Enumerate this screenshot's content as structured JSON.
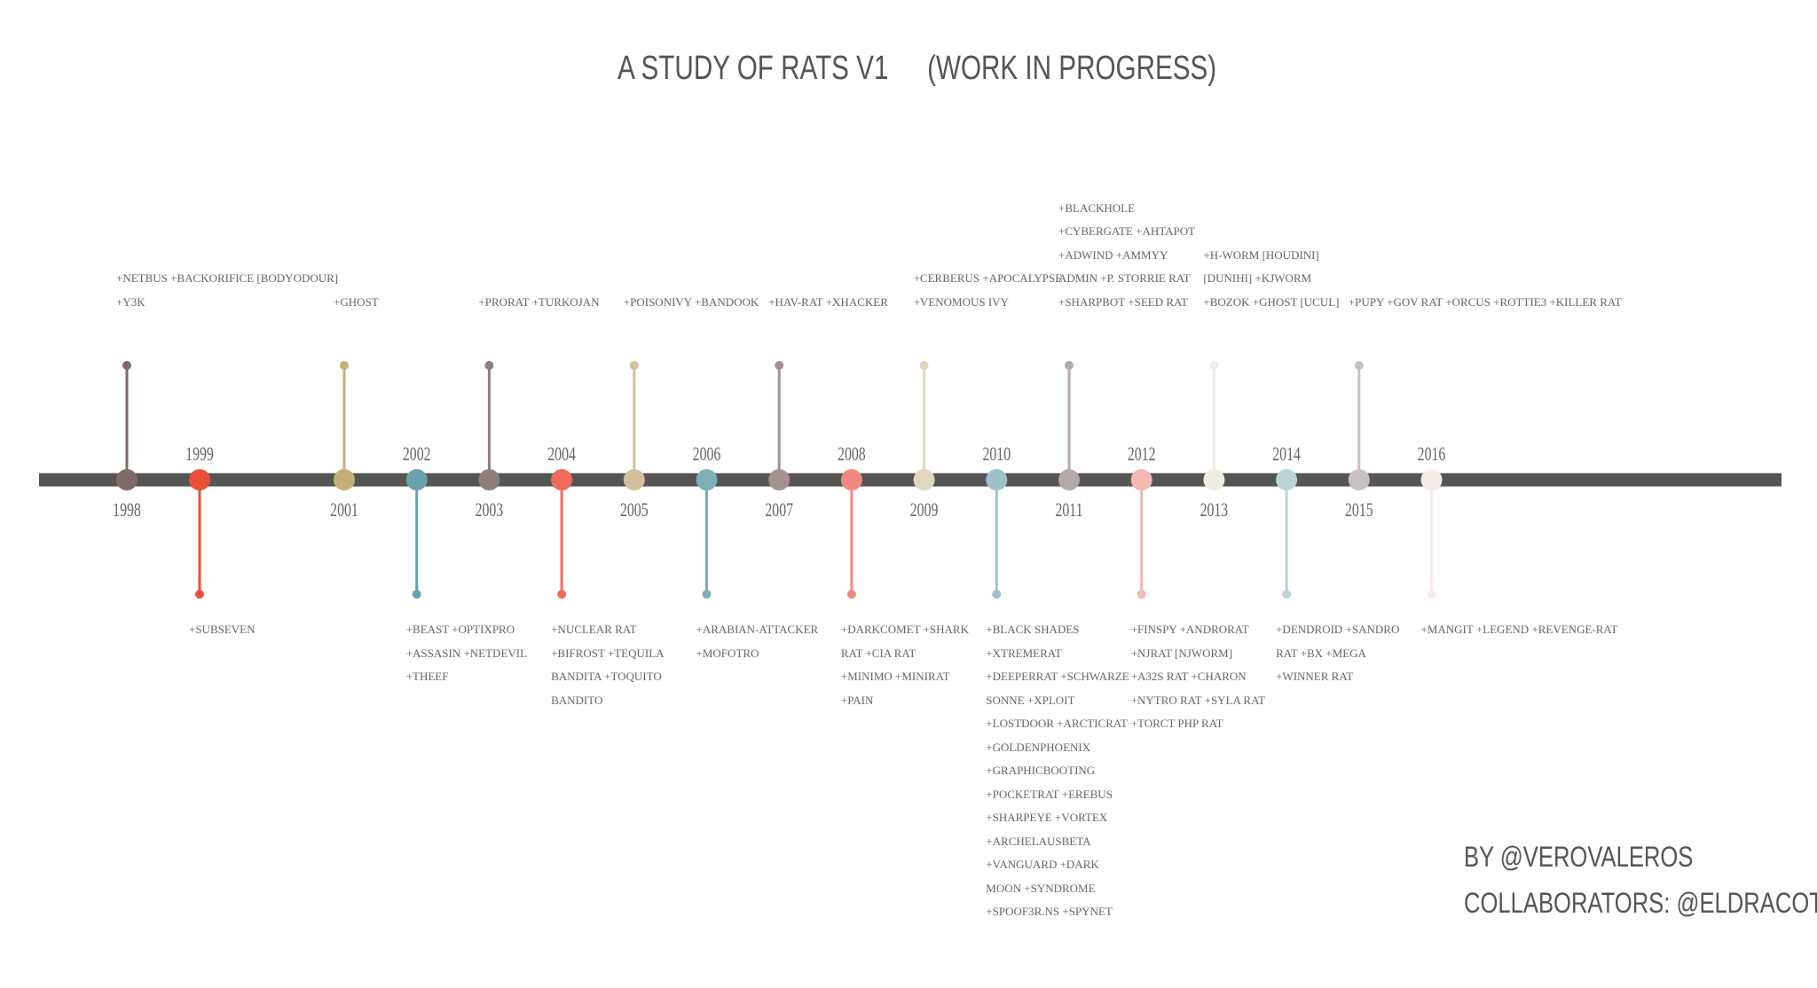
{
  "title": {
    "main": "A STUDY OF RATS V1",
    "status": "(WORK IN PROGRESS)"
  },
  "credits": {
    "author": "BY @VEROVALEROS",
    "collaborators": "COLLABORATORS: @ELDRACOTE"
  },
  "colors": {
    "axis": "#555555",
    "c1998": "#7d6c69",
    "c1999": "#e8503a",
    "c2001": "#c6ae79",
    "c2002": "#6aa3ab",
    "c2003": "#8f7e79",
    "c2004": "#ee6b5c",
    "c2005": "#d3c09f",
    "c2006": "#7eaeb6",
    "c2007": "#a3928f",
    "c2008": "#f08a80",
    "c2009": "#e0d7bf",
    "c2010": "#9ec2c8",
    "c2011": "#b3a9a7",
    "c2012": "#f4b9b3",
    "c2013": "#f1ece4",
    "c2014": "#b9d5d9",
    "c2015": "#c9c1bf",
    "c2016": "#f7ece9"
  },
  "timeline": [
    {
      "year": "1998",
      "side": "up",
      "color": "#7d6c69",
      "lines": [
        "+NETBUS +BACKORIFICE [BODYODOUR]",
        "+Y3K"
      ]
    },
    {
      "year": "1999",
      "side": "down",
      "color": "#e8503a",
      "lines": [
        "+SUBSEVEN"
      ]
    },
    {
      "year": "2001",
      "side": "up",
      "color": "#c6ae79",
      "lines": [
        "+GHOST"
      ]
    },
    {
      "year": "2002",
      "side": "down",
      "color": "#6aa3ab",
      "lines": [
        "+BEAST +OPTIXPRO",
        "+ASSASIN +NETDEVIL",
        "+THEEF"
      ]
    },
    {
      "year": "2003",
      "side": "up",
      "color": "#8f7e79",
      "lines": [
        "+PRORAT +TURKOJAN"
      ]
    },
    {
      "year": "2004",
      "side": "down",
      "color": "#ee6b5c",
      "lines": [
        "+NUCLEAR RAT",
        "+BIFROST +TEQUILA",
        "BANDITA +TOQUITO",
        "BANDITO"
      ]
    },
    {
      "year": "2005",
      "side": "up",
      "color": "#d3c09f",
      "lines": [
        "+POISONIVY +BANDOOK"
      ]
    },
    {
      "year": "2006",
      "side": "down",
      "color": "#7eaeb6",
      "lines": [
        "+ARABIAN-ATTACKER",
        "+MOFOTRO"
      ]
    },
    {
      "year": "2007",
      "side": "up",
      "color": "#a3928f",
      "lines": [
        "+HAV-RAT +XHACKER"
      ]
    },
    {
      "year": "2008",
      "side": "down",
      "color": "#f08a80",
      "lines": [
        "+DARKCOMET +SHARK",
        "RAT +CIA RAT",
        "+MINIMO +MINIRAT",
        "+PAIN"
      ]
    },
    {
      "year": "2009",
      "side": "up",
      "color": "#e0d7bf",
      "lines": [
        "+CERBERUS +APOCALYPSE",
        "+VENOMOUS IVY"
      ]
    },
    {
      "year": "2010",
      "side": "down",
      "color": "#9ec2c8",
      "lines": [
        "+BLACK SHADES",
        "+XTREMERAT",
        "+DEEPERRAT +SCHWARZE",
        "SONNE +XPLOIT",
        "+LOSTDOOR +ARCTICRAT",
        "+GOLDENPHOENIX",
        "+GRAPHICBOOTING",
        "+POCKETRAT +EREBUS",
        "+SHARPEYE +VORTEX",
        "+ARCHELAUSBETA",
        "+VANGUARD +DARK",
        "MOON +SYNDROME",
        "+SPOOF3R.NS +SPYNET"
      ]
    },
    {
      "year": "2011",
      "side": "up",
      "color": "#b3a9a7",
      "lines": [
        "+BLACKHOLE",
        "+CYBERGATE +AHTAPOT",
        "+ADWIND +AMMYY",
        "ADMIN +P. STORRIE RAT",
        "+SHARPBOT +SEED RAT"
      ]
    },
    {
      "year": "2012",
      "side": "down",
      "color": "#f4b9b3",
      "lines": [
        "+FINSPY +ANDRORAT",
        "+NJRAT [NJWORM]",
        "+A32S RAT +CHARON",
        "+NYTRO RAT +SYLA RAT",
        "+TORCT PHP RAT"
      ]
    },
    {
      "year": "2013",
      "side": "up",
      "color": "#f1ece4",
      "lines": [
        "+H-WORM [HOUDINI]",
        "[DUNIHI] +KJWORM",
        "+BOZOK +GHOST [UCUL]"
      ]
    },
    {
      "year": "2014",
      "side": "down",
      "color": "#b9d5d9",
      "lines": [
        "+DENDROID +SANDRO",
        "RAT +BX +MEGA",
        "+WINNER RAT"
      ]
    },
    {
      "year": "2015",
      "side": "up",
      "color": "#c9c1bf",
      "lines": [
        "+PUPY +GOV RAT +ORCUS +ROTTIE3 +KILLER RAT"
      ]
    },
    {
      "year": "2016",
      "side": "down",
      "color": "#f7ece9",
      "lines": [
        "+MANGIT +LEGEND +REVENGE-RAT"
      ]
    }
  ]
}
